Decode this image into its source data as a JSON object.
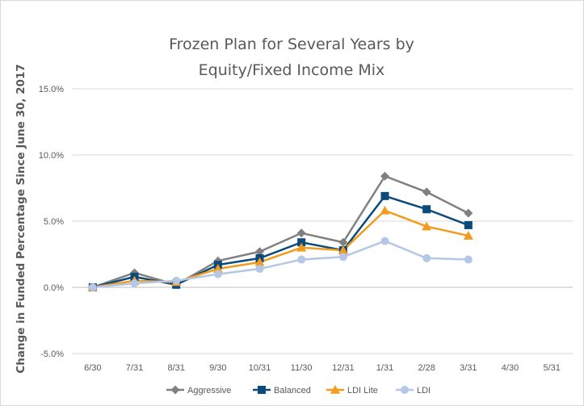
{
  "chart_data": {
    "type": "line",
    "title_lines": [
      "Frozen Plan for Several Years by",
      "Equity/Fixed Income Mix"
    ],
    "xlabel": "",
    "ylabel": "Change in Funded Percentage Since June 30, 2017",
    "categories": [
      "6/30",
      "7/31",
      "8/31",
      "9/30",
      "10/31",
      "11/30",
      "12/31",
      "1/31",
      "2/28",
      "3/31",
      "4/30",
      "5/31"
    ],
    "ylim": [
      -0.05,
      0.15
    ],
    "yticks": [
      -0.05,
      0.0,
      0.05,
      0.1,
      0.15
    ],
    "ytick_labels": [
      "-5.0%",
      "0.0%",
      "5.0%",
      "10.0%",
      "15.0%"
    ],
    "grid": true,
    "legend_position": "bottom",
    "series": [
      {
        "name": "Aggressive",
        "color": "#808080",
        "marker": "diamond",
        "values": [
          0.0,
          0.011,
          0.002,
          0.02,
          0.027,
          0.041,
          0.034,
          0.084,
          0.072,
          0.056,
          null,
          null
        ]
      },
      {
        "name": "Balanced",
        "color": "#0b4a7a",
        "marker": "square",
        "values": [
          0.0,
          0.008,
          0.002,
          0.017,
          0.022,
          0.034,
          0.028,
          0.069,
          0.059,
          0.047,
          null,
          null
        ]
      },
      {
        "name": "LDI Lite",
        "color": "#f29b1d",
        "marker": "triangle",
        "values": [
          0.0,
          0.005,
          0.004,
          0.014,
          0.019,
          0.03,
          0.028,
          0.058,
          0.046,
          0.039,
          null,
          null
        ]
      },
      {
        "name": "LDI",
        "color": "#b4c7e7",
        "marker": "circle",
        "values": [
          0.0,
          0.003,
          0.005,
          0.01,
          0.014,
          0.021,
          0.023,
          0.035,
          0.022,
          0.021,
          null,
          null
        ]
      }
    ]
  }
}
